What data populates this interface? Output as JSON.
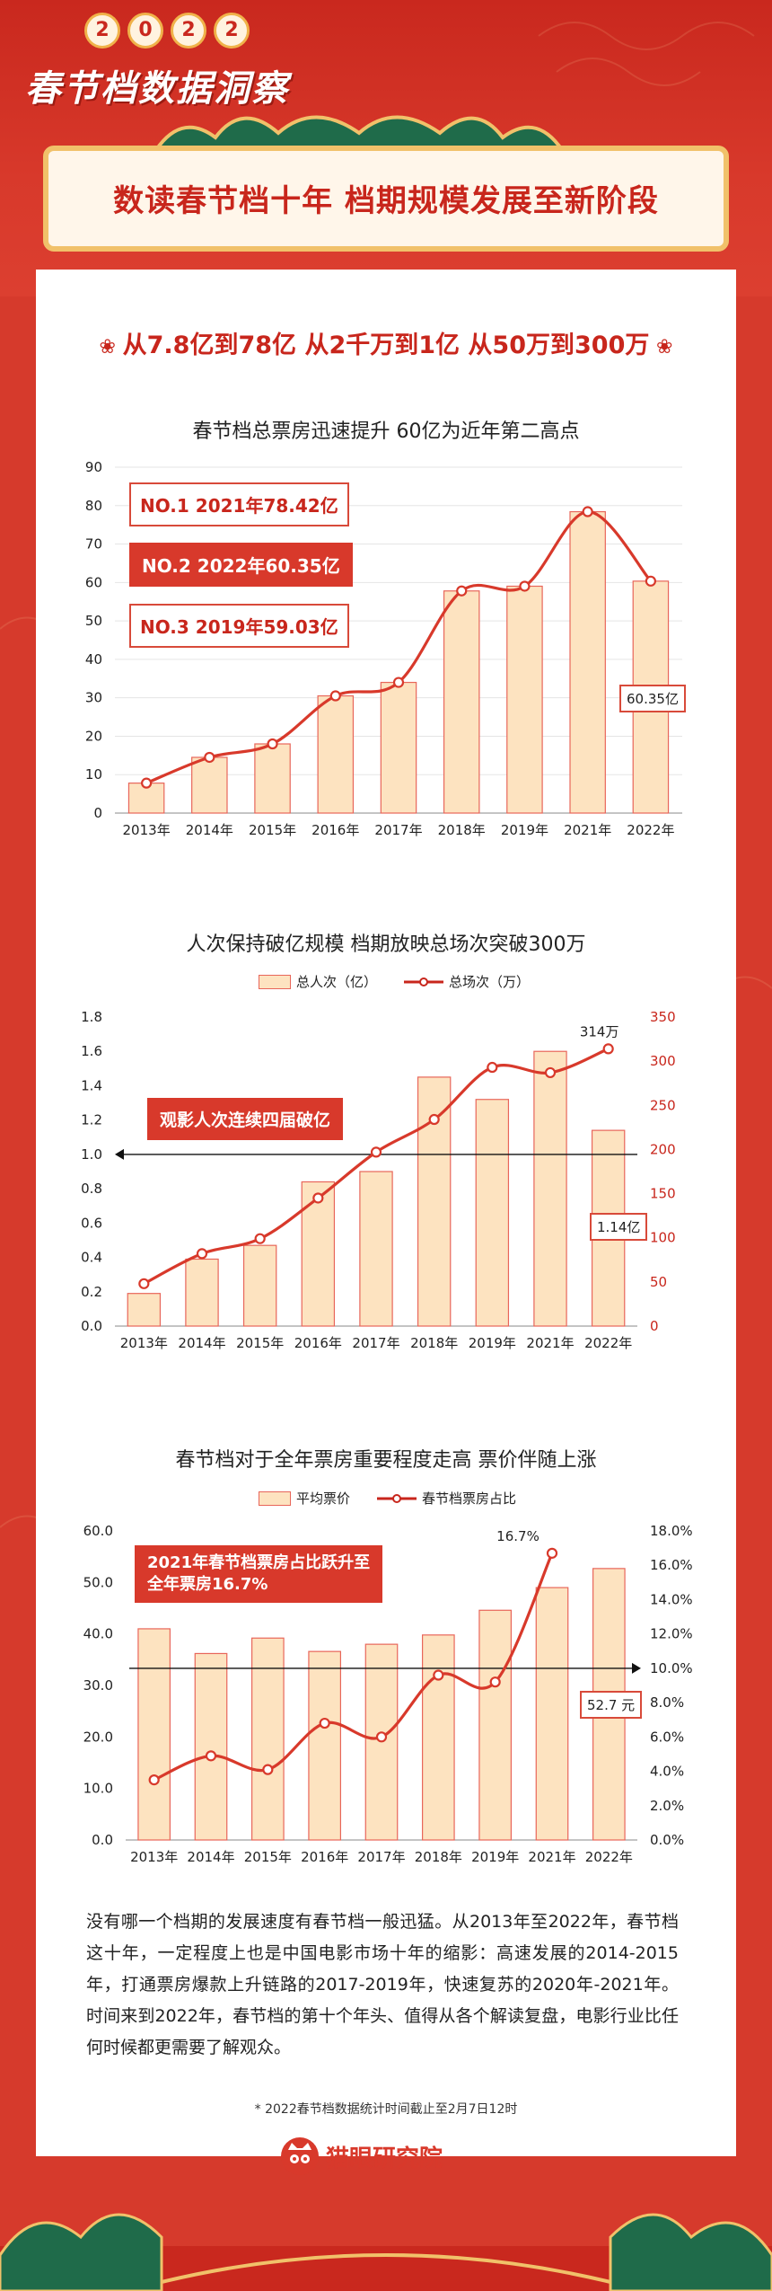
{
  "header": {
    "year_digits": [
      "2",
      "0",
      "2",
      "2"
    ],
    "title": "春节档数据洞察",
    "banner_title": "数读春节档十年 档期规模发展至新阶段"
  },
  "subtitle": "从7.8亿到78亿  从2千万到1亿  从50万到300万",
  "colors": {
    "red": "#d8392b",
    "bar_fill": "#fde3c0",
    "bar_border": "#e8665a",
    "gold": "#f1c16a"
  },
  "charts": {
    "c1": {
      "title": "春节档总票房迅速提升 60亿为近年第二高点",
      "annotations": [
        "NO.1 2021年78.42亿",
        "NO.2 2022年60.35亿",
        "NO.3 2019年59.03亿"
      ],
      "callout": "60.35亿"
    },
    "c2": {
      "title": "人次保持破亿规模 档期放映总场次突破300万",
      "legend_bar": "总人次（亿）",
      "legend_line": "总场次（万）",
      "annotation": "观影人次连续四届破亿",
      "callout": "1.14亿",
      "top_label": "314万"
    },
    "c3": {
      "title": "春节档对于全年票房重要程度走高 票价伴随上涨",
      "legend_bar": "平均票价",
      "legend_line": "春节档票房占比",
      "annotation_line1": "2021年春节档票房占比跃升至",
      "annotation_line2": "全年票房16.7%",
      "callout": "52.7 元",
      "top_label": "16.7%"
    }
  },
  "chart_data": [
    {
      "type": "bar",
      "title": "春节档总票房迅速提升 60亿为近年第二高点",
      "categories": [
        "2013年",
        "2014年",
        "2015年",
        "2016年",
        "2017年",
        "2018年",
        "2019年",
        "2021年",
        "2022年"
      ],
      "values": [
        7.8,
        14.5,
        18,
        30.5,
        34,
        57.8,
        59.03,
        78.42,
        60.35
      ],
      "line_values": [
        7.8,
        14.5,
        18,
        30.5,
        34,
        57.8,
        59.03,
        78.42,
        60.35
      ],
      "ylim": [
        0,
        90
      ],
      "yticks": [
        0,
        10,
        20,
        30,
        40,
        50,
        60,
        70,
        80,
        90
      ],
      "grid": true
    },
    {
      "type": "bar",
      "title": "人次保持破亿规模 档期放映总场次突破300万",
      "categories": [
        "2013年",
        "2014年",
        "2015年",
        "2016年",
        "2017年",
        "2018年",
        "2019年",
        "2021年",
        "2022年"
      ],
      "series": [
        {
          "name": "总人次（亿）",
          "type": "bar",
          "axis": "left",
          "values": [
            0.19,
            0.39,
            0.47,
            0.84,
            0.9,
            1.45,
            1.32,
            1.6,
            1.14
          ]
        },
        {
          "name": "总场次（万）",
          "type": "line",
          "axis": "right",
          "values": [
            48,
            82,
            99,
            145,
            197,
            234,
            293,
            287,
            314
          ]
        }
      ],
      "ylim_left": [
        0,
        1.8
      ],
      "yticks_left": [
        "0.0",
        "0.2",
        "0.4",
        "0.6",
        "0.8",
        "1.0",
        "1.2",
        "1.4",
        "1.6",
        "1.8"
      ],
      "ylim_right": [
        0,
        350
      ],
      "yticks_right": [
        "0",
        "50",
        "100",
        "150",
        "200",
        "250",
        "300",
        "350"
      ],
      "reference_line": 1.0,
      "legend": "top"
    },
    {
      "type": "bar",
      "title": "春节档对于全年票房重要程度走高 票价伴随上涨",
      "categories": [
        "2013年",
        "2014年",
        "2015年",
        "2016年",
        "2017年",
        "2018年",
        "2019年",
        "2021年",
        "2022年"
      ],
      "series": [
        {
          "name": "平均票价",
          "type": "bar",
          "axis": "left",
          "values": [
            41.0,
            36.2,
            39.2,
            36.6,
            38.0,
            39.8,
            44.6,
            49.0,
            52.7
          ]
        },
        {
          "name": "春节档票房占比",
          "type": "line",
          "axis": "right",
          "values": [
            3.5,
            4.9,
            4.1,
            6.8,
            6.0,
            9.6,
            9.2,
            16.7,
            null
          ]
        }
      ],
      "ylim_left": [
        0,
        60
      ],
      "yticks_left": [
        "0.0",
        "10.0",
        "20.0",
        "30.0",
        "40.0",
        "50.0",
        "60.0"
      ],
      "ylim_right": [
        0,
        18
      ],
      "yticks_right": [
        "0.0%",
        "2.0%",
        "4.0%",
        "6.0%",
        "8.0%",
        "10.0%",
        "12.0%",
        "14.0%",
        "16.0%",
        "18.0%"
      ],
      "reference_line_right": 10.0,
      "legend": "top"
    }
  ],
  "paragraph": "没有哪一个档期的发展速度有春节档一般迅猛。从2013年至2022年，春节档这十年，一定程度上也是中国电影市场十年的缩影：高速发展的2014-2015年，打通票房爆款上升链路的2017-2019年，快速复苏的2020年-2021年。时间来到2022年，春节档的第十个年头、值得从各个解读复盘，电影行业比任何时候都更需要了解观众。",
  "footnote": "* 2022春节档数据统计时间截止至2月7日12时",
  "logo_text": "猫眼研究院"
}
